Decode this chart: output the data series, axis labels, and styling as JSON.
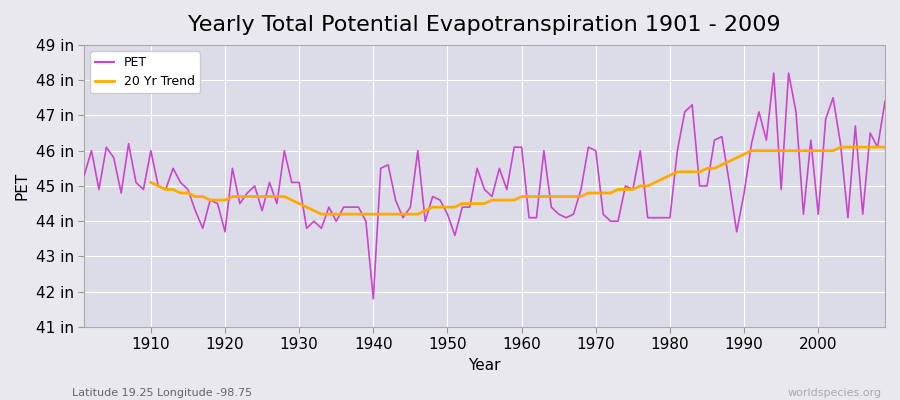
{
  "title": "Yearly Total Potential Evapotranspiration 1901 - 2009",
  "xlabel": "Year",
  "ylabel": "PET",
  "subtitle_left": "Latitude 19.25 Longitude -98.75",
  "subtitle_right": "worldspecies.org",
  "background_color": "#e8e8ee",
  "plot_bg_color": "#dcdce8",
  "pet_color": "#cc44cc",
  "trend_color": "#ffaa00",
  "years": [
    1901,
    1902,
    1903,
    1904,
    1905,
    1906,
    1907,
    1908,
    1909,
    1910,
    1911,
    1912,
    1913,
    1914,
    1915,
    1916,
    1917,
    1918,
    1919,
    1920,
    1921,
    1922,
    1923,
    1924,
    1925,
    1926,
    1927,
    1928,
    1929,
    1930,
    1931,
    1932,
    1933,
    1934,
    1935,
    1936,
    1937,
    1938,
    1939,
    1940,
    1941,
    1942,
    1943,
    1944,
    1945,
    1946,
    1947,
    1948,
    1949,
    1950,
    1951,
    1952,
    1953,
    1954,
    1955,
    1956,
    1957,
    1958,
    1959,
    1960,
    1961,
    1962,
    1963,
    1964,
    1965,
    1966,
    1967,
    1968,
    1969,
    1970,
    1971,
    1972,
    1973,
    1974,
    1975,
    1976,
    1977,
    1978,
    1979,
    1980,
    1981,
    1982,
    1983,
    1984,
    1985,
    1986,
    1987,
    1988,
    1989,
    1990,
    1991,
    1992,
    1993,
    1994,
    1995,
    1996,
    1997,
    1998,
    1999,
    2000,
    2001,
    2002,
    2003,
    2004,
    2005,
    2006,
    2007,
    2008,
    2009
  ],
  "pet_values": [
    45.3,
    46.0,
    44.9,
    46.1,
    45.8,
    44.8,
    46.2,
    45.1,
    44.9,
    46.0,
    45.0,
    44.9,
    45.5,
    45.1,
    44.9,
    44.3,
    43.8,
    44.6,
    44.5,
    43.7,
    45.5,
    44.5,
    44.8,
    45.0,
    44.3,
    45.1,
    44.5,
    46.0,
    45.1,
    45.1,
    43.8,
    44.0,
    43.8,
    44.4,
    44.0,
    44.4,
    44.4,
    44.4,
    44.0,
    41.8,
    45.5,
    45.6,
    44.6,
    44.1,
    44.4,
    46.0,
    44.0,
    44.7,
    44.6,
    44.2,
    43.6,
    44.4,
    44.4,
    45.5,
    44.9,
    44.7,
    45.5,
    44.9,
    46.1,
    46.1,
    44.1,
    44.1,
    46.0,
    44.4,
    44.2,
    44.1,
    44.2,
    44.9,
    46.1,
    46.0,
    44.2,
    44.0,
    44.0,
    45.0,
    44.9,
    46.0,
    44.1,
    44.1,
    44.1,
    44.1,
    46.0,
    47.1,
    47.3,
    45.0,
    45.0,
    46.3,
    46.4,
    45.1,
    43.7,
    44.8,
    46.2,
    47.1,
    46.3,
    48.2,
    44.9,
    48.2,
    47.1,
    44.2,
    46.3,
    44.2,
    46.9,
    47.5,
    46.2,
    44.1,
    46.7,
    44.2,
    46.5,
    46.1,
    47.4
  ],
  "trend_years": [
    1910,
    1911,
    1912,
    1913,
    1914,
    1915,
    1916,
    1917,
    1918,
    1919,
    1920,
    1921,
    1922,
    1923,
    1924,
    1925,
    1926,
    1927,
    1928,
    1929,
    1930,
    1931,
    1932,
    1933,
    1934,
    1935,
    1936,
    1937,
    1938,
    1939,
    1940,
    1941,
    1942,
    1943,
    1944,
    1945,
    1946,
    1947,
    1948,
    1949,
    1950,
    1951,
    1952,
    1953,
    1954,
    1955,
    1956,
    1957,
    1958,
    1959,
    1960,
    1961,
    1962,
    1963,
    1964,
    1965,
    1966,
    1967,
    1968,
    1969,
    1970,
    1971,
    1972,
    1973,
    1974,
    1975,
    1976,
    1977,
    1978,
    1979,
    1980,
    1981,
    1982,
    1983,
    1984,
    1985,
    1986,
    1987,
    1988,
    1989,
    1990,
    1991,
    1992,
    1993,
    1994,
    1995,
    1996,
    1997,
    1998,
    1999,
    2000,
    2001,
    2002,
    2003,
    2004,
    2005,
    2006,
    2007,
    2008,
    2009
  ],
  "trend_values": [
    45.1,
    45.0,
    44.9,
    44.9,
    44.8,
    44.8,
    44.7,
    44.7,
    44.6,
    44.6,
    44.6,
    44.7,
    44.7,
    44.7,
    44.7,
    44.7,
    44.7,
    44.7,
    44.7,
    44.6,
    44.5,
    44.4,
    44.3,
    44.2,
    44.2,
    44.2,
    44.2,
    44.2,
    44.2,
    44.2,
    44.2,
    44.2,
    44.2,
    44.2,
    44.2,
    44.2,
    44.2,
    44.3,
    44.4,
    44.4,
    44.4,
    44.4,
    44.5,
    44.5,
    44.5,
    44.5,
    44.6,
    44.6,
    44.6,
    44.6,
    44.7,
    44.7,
    44.7,
    44.7,
    44.7,
    44.7,
    44.7,
    44.7,
    44.7,
    44.8,
    44.8,
    44.8,
    44.8,
    44.9,
    44.9,
    44.9,
    45.0,
    45.0,
    45.1,
    45.2,
    45.3,
    45.4,
    45.4,
    45.4,
    45.4,
    45.5,
    45.5,
    45.6,
    45.7,
    45.8,
    45.9,
    46.0,
    46.0,
    46.0,
    46.0,
    46.0,
    46.0,
    46.0,
    46.0,
    46.0,
    46.0,
    46.0,
    46.0,
    46.1,
    46.1,
    46.1,
    46.1,
    46.1,
    46.1,
    46.1
  ],
  "ylim": [
    41.0,
    49.0
  ],
  "yticks": [
    41,
    42,
    43,
    44,
    45,
    46,
    47,
    48,
    49
  ],
  "xticks": [
    1910,
    1920,
    1930,
    1940,
    1950,
    1960,
    1970,
    1980,
    1990,
    2000
  ],
  "grid_color": "#ffffff",
  "title_fontsize": 16,
  "axis_fontsize": 11
}
